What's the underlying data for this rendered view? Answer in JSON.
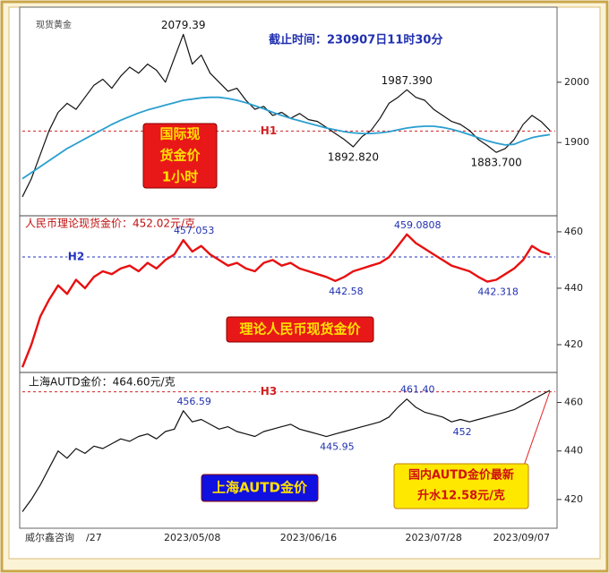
{
  "chart_data": [
    {
      "type": "line",
      "title": "截止时间：230907日11时30分",
      "label": "现货黄金",
      "ylim": [
        1780,
        2120
      ],
      "yticks": [
        1900,
        2000
      ],
      "hline": {
        "value": 1919,
        "label": "H1",
        "color": "#d02020"
      },
      "notes": [
        "国际现",
        "货金价",
        "1小时"
      ],
      "series": [
        {
          "color": "#111111",
          "values": [
            1810,
            1840,
            1880,
            1920,
            1950,
            1965,
            1955,
            1975,
            1995,
            2005,
            1990,
            2010,
            2025,
            2015,
            2030,
            2020,
            2000,
            2040,
            2079.39,
            2030,
            2045,
            2015,
            2000,
            1985,
            1990,
            1970,
            1955,
            1960,
            1945,
            1950,
            1940,
            1948,
            1938,
            1935,
            1925,
            1915,
            1905,
            1892.82,
            1910,
            1920,
            1940,
            1965,
            1975,
            1987.39,
            1975,
            1970,
            1955,
            1945,
            1935,
            1930,
            1920,
            1905,
            1895,
            1883.7,
            1890,
            1905,
            1930,
            1945,
            1935,
            1920
          ],
          "value_labels": [
            null,
            null,
            null,
            null,
            null,
            null,
            null,
            null,
            null,
            null,
            null,
            null,
            null,
            null,
            null,
            null,
            null,
            null,
            "2079.39",
            null,
            null,
            null,
            null,
            null,
            null,
            null,
            null,
            null,
            null,
            null,
            null,
            null,
            null,
            null,
            null,
            null,
            null,
            "1892.820",
            null,
            null,
            null,
            null,
            null,
            "1987.390",
            null,
            null,
            null,
            null,
            null,
            null,
            null,
            null,
            null,
            "1883.700",
            null,
            null,
            null,
            null,
            null,
            null
          ]
        },
        {
          "color": "#2a9fd0",
          "values": [
            1840,
            1850,
            1860,
            1870,
            1880,
            1890,
            1898,
            1906,
            1914,
            1922,
            1930,
            1937,
            1943,
            1949,
            1954,
            1958,
            1962,
            1966,
            1970,
            1972,
            1974,
            1975,
            1975,
            1973,
            1970,
            1966,
            1961,
            1956,
            1950,
            1945,
            1940,
            1936,
            1932,
            1928,
            1924,
            1921,
            1918,
            1916,
            1915,
            1915,
            1916,
            1918,
            1921,
            1924,
            1926,
            1927,
            1927,
            1925,
            1922,
            1918,
            1913,
            1908,
            1903,
            1899,
            1896,
            1897,
            1903,
            1908,
            1911,
            1913
          ]
        }
      ]
    },
    {
      "type": "line",
      "label": "人民币理论现货金价：452.02元/克",
      "ylim": [
        410,
        466
      ],
      "yticks": [
        420,
        440,
        460
      ],
      "hline": {
        "value": 451.1,
        "label": "H2",
        "color": "#2030c0"
      },
      "notes": [
        "理论人民币现货金价"
      ],
      "series": [
        {
          "color": "#e81010",
          "values": [
            412,
            420,
            430,
            436,
            441,
            438,
            443,
            440,
            444,
            446,
            445,
            447,
            448,
            446,
            449,
            447,
            450,
            452,
            457.053,
            453,
            455,
            452,
            450,
            448,
            449,
            447,
            446,
            449,
            450,
            448,
            449,
            447,
            446,
            445,
            444,
            442.58,
            444,
            446,
            447,
            448,
            449,
            451,
            455,
            459.0808,
            456,
            454,
            452,
            450,
            448,
            447,
            446,
            444,
            442.318,
            443,
            445,
            447,
            450,
            455,
            453,
            452
          ],
          "value_labels": [
            null,
            null,
            null,
            null,
            null,
            null,
            null,
            null,
            null,
            null,
            null,
            null,
            null,
            null,
            null,
            null,
            null,
            null,
            "457.053",
            null,
            null,
            null,
            null,
            null,
            null,
            null,
            null,
            null,
            null,
            null,
            null,
            null,
            null,
            null,
            null,
            "442.58",
            null,
            null,
            null,
            null,
            null,
            null,
            null,
            "459.0808",
            null,
            null,
            null,
            null,
            null,
            null,
            null,
            null,
            "442.318",
            null,
            null,
            null,
            null,
            null,
            null,
            null
          ]
        }
      ]
    },
    {
      "type": "line",
      "label": "上海AUTD金价：464.60元/克",
      "ylim": [
        410,
        472
      ],
      "yticks": [
        420,
        440,
        460
      ],
      "hline": {
        "value": 464.4,
        "label": "H3",
        "color": "#d02020"
      },
      "notes": [
        "上海AUTD金价"
      ],
      "callout": [
        "国内AUTD金价最新",
        "升水12.58元/克"
      ],
      "footer": "威尔鑫咨询",
      "categories": [
        null,
        null,
        null,
        null,
        null,
        null,
        null,
        null,
        "/27",
        null,
        null,
        null,
        null,
        null,
        null,
        null,
        null,
        null,
        null,
        "2023/05/08",
        null,
        null,
        null,
        null,
        null,
        null,
        null,
        null,
        null,
        null,
        null,
        null,
        "2023/06/16",
        null,
        null,
        null,
        null,
        null,
        null,
        null,
        null,
        null,
        null,
        null,
        null,
        null,
        "2023/07/28",
        null,
        null,
        null,
        null,
        null,
        null,
        null,
        null,
        null,
        null,
        null,
        null,
        "2023/09/07"
      ],
      "series": [
        {
          "color": "#111111",
          "values": [
            415,
            420,
            426,
            433,
            440,
            437,
            441,
            439,
            442,
            441,
            443,
            445,
            444,
            446,
            447,
            445,
            448,
            449,
            456.59,
            452,
            453,
            451,
            449,
            450,
            448,
            447,
            446,
            448,
            449,
            450,
            451,
            449,
            448,
            447,
            445.95,
            447,
            448,
            449,
            450,
            451,
            452,
            454,
            458,
            461.4,
            458,
            456,
            455,
            454,
            452,
            453,
            452,
            453,
            454,
            455,
            456,
            457,
            459,
            461,
            463,
            465
          ],
          "value_labels": [
            null,
            null,
            null,
            null,
            null,
            null,
            null,
            null,
            null,
            null,
            null,
            null,
            null,
            null,
            null,
            null,
            null,
            null,
            "456.59",
            null,
            null,
            null,
            null,
            null,
            null,
            null,
            null,
            null,
            null,
            null,
            null,
            null,
            null,
            null,
            "445.95",
            null,
            null,
            null,
            null,
            null,
            null,
            null,
            null,
            "461.40",
            null,
            null,
            null,
            null,
            "452",
            null,
            null,
            null,
            null,
            null,
            null,
            null,
            null,
            null,
            null,
            null
          ]
        }
      ]
    }
  ]
}
